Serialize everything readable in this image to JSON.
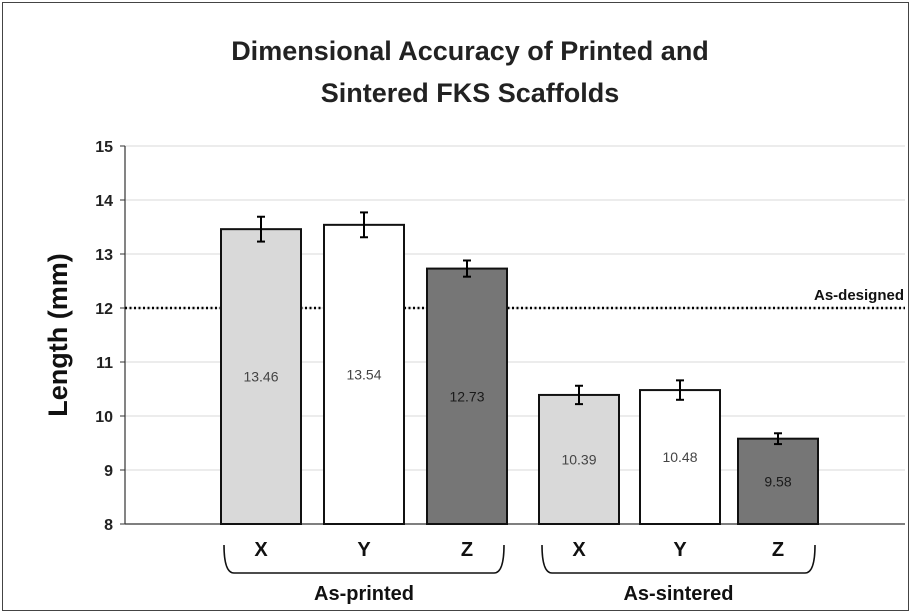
{
  "chart_data": {
    "type": "bar",
    "title_line1": "Dimensional Accuracy of Printed and",
    "title_line2": "Sintered FKS Scaffolds",
    "ylabel": "Length (mm)",
    "ylim": [
      8,
      15
    ],
    "yticks": [
      8,
      9,
      10,
      11,
      12,
      13,
      14,
      15
    ],
    "grid": true,
    "categories": [
      "X",
      "Y",
      "Z",
      "X",
      "Y",
      "Z"
    ],
    "values": [
      13.46,
      13.54,
      12.73,
      10.39,
      10.48,
      9.58
    ],
    "value_labels": [
      "13.46",
      "13.54",
      "12.73",
      "10.39",
      "10.48",
      "9.58"
    ],
    "errors": [
      0.23,
      0.23,
      0.15,
      0.17,
      0.18,
      0.1
    ],
    "groups": [
      {
        "label": "As-printed",
        "indices": [
          0,
          1,
          2
        ]
      },
      {
        "label": "As-sintered",
        "indices": [
          3,
          4,
          5
        ]
      }
    ],
    "reference_line": {
      "value": 12,
      "label": "As-designed",
      "style": "dotted"
    },
    "bar_colors": [
      "#d9d9d9",
      "#ffffff",
      "#767676",
      "#d9d9d9",
      "#ffffff",
      "#767676"
    ]
  }
}
